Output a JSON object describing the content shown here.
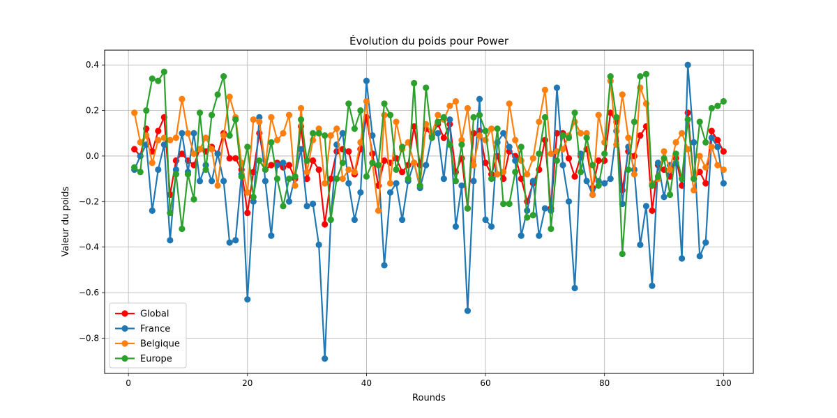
{
  "chart_data": {
    "type": "line",
    "title": "Évolution du poids pour Power",
    "xlabel": "Rounds",
    "ylabel": "Valeur du poids",
    "xlim": [
      -4,
      105
    ],
    "ylim": [
      -0.955,
      0.465
    ],
    "xticks": [
      0,
      20,
      40,
      60,
      80,
      100
    ],
    "xtick_labels": [
      "0",
      "20",
      "40",
      "60",
      "80",
      "100"
    ],
    "yticks": [
      -0.8,
      -0.6,
      -0.4,
      -0.2,
      0.0,
      0.2,
      0.4
    ],
    "ytick_labels": [
      "−0.8",
      "−0.6",
      "−0.4",
      "−0.2",
      "0.0",
      "0.2",
      "0.4"
    ],
    "grid": true,
    "legend_position": "lower-left",
    "x": [
      1,
      2,
      3,
      4,
      5,
      6,
      7,
      8,
      9,
      10,
      11,
      12,
      13,
      14,
      15,
      16,
      17,
      18,
      19,
      20,
      21,
      22,
      23,
      24,
      25,
      26,
      27,
      28,
      29,
      30,
      31,
      32,
      33,
      34,
      35,
      36,
      37,
      38,
      39,
      40,
      41,
      42,
      43,
      44,
      45,
      46,
      47,
      48,
      49,
      50,
      51,
      52,
      53,
      54,
      55,
      56,
      57,
      58,
      59,
      60,
      61,
      62,
      63,
      64,
      65,
      66,
      67,
      68,
      69,
      70,
      71,
      72,
      73,
      74,
      75,
      76,
      77,
      78,
      79,
      80,
      81,
      82,
      83,
      84,
      85,
      86,
      87,
      88,
      89,
      90,
      91,
      92,
      93,
      94,
      95,
      96,
      97,
      98,
      99,
      100
    ],
    "series": [
      {
        "name": "Global",
        "color": "#ff0000",
        "values": [
          0.03,
          0.0,
          0.12,
          0.02,
          0.11,
          0.17,
          -0.17,
          -0.02,
          0.01,
          -0.02,
          -0.04,
          0.03,
          0.02,
          0.04,
          0.01,
          0.1,
          -0.01,
          -0.01,
          -0.06,
          -0.25,
          -0.07,
          0.1,
          -0.06,
          -0.04,
          -0.03,
          -0.05,
          -0.04,
          -0.1,
          0.13,
          -0.1,
          -0.02,
          -0.06,
          -0.3,
          -0.1,
          0.02,
          0.03,
          0.02,
          -0.08,
          0.03,
          0.17,
          0.01,
          -0.13,
          -0.02,
          -0.03,
          -0.01,
          -0.07,
          -0.04,
          0.13,
          -0.04,
          0.12,
          0.09,
          0.14,
          0.08,
          0.14,
          -0.07,
          -0.01,
          -0.23,
          0.1,
          0.11,
          -0.03,
          -0.08,
          0.0,
          -0.1,
          0.02,
          0.0,
          -0.1,
          -0.2,
          -0.12,
          -0.06,
          0.07,
          -0.23,
          0.1,
          0.1,
          -0.01,
          -0.09,
          0.0,
          0.03,
          -0.14,
          -0.02,
          -0.02,
          0.19,
          0.15,
          -0.15,
          0.02,
          0.0,
          0.09,
          0.13,
          -0.24,
          -0.04,
          -0.06,
          -0.09,
          -0.01,
          -0.13,
          0.19,
          -0.1,
          -0.07,
          -0.12,
          0.11,
          0.07,
          0.02
        ]
      },
      {
        "name": "France",
        "color": "#1f77b4",
        "values": [
          -0.06,
          0.0,
          0.05,
          -0.24,
          -0.06,
          0.05,
          -0.37,
          -0.06,
          0.1,
          -0.07,
          0.1,
          -0.11,
          -0.04,
          -0.11,
          0.01,
          -0.11,
          -0.38,
          -0.37,
          -0.08,
          -0.63,
          -0.2,
          0.17,
          -0.11,
          -0.35,
          -0.04,
          -0.03,
          -0.2,
          -0.09,
          0.03,
          -0.22,
          -0.21,
          -0.39,
          -0.89,
          -0.28,
          0.05,
          0.1,
          -0.12,
          -0.28,
          -0.16,
          0.33,
          0.09,
          -0.04,
          -0.48,
          -0.16,
          -0.12,
          -0.28,
          -0.11,
          -0.03,
          -0.14,
          -0.04,
          0.09,
          0.1,
          -0.1,
          0.16,
          -0.31,
          -0.13,
          -0.68,
          -0.11,
          0.25,
          -0.28,
          -0.31,
          0.06,
          0.1,
          0.04,
          -0.02,
          -0.35,
          -0.24,
          -0.11,
          -0.35,
          -0.23,
          -0.24,
          0.3,
          -0.04,
          -0.2,
          -0.58,
          0.01,
          -0.11,
          -0.17,
          -0.11,
          -0.12,
          -0.1,
          0.11,
          -0.21,
          0.04,
          -0.06,
          -0.39,
          -0.22,
          -0.57,
          -0.03,
          -0.18,
          -0.04,
          -0.03,
          -0.45,
          0.4,
          0.06,
          -0.44,
          -0.38,
          0.08,
          0.04,
          -0.12
        ]
      },
      {
        "name": "Belgique",
        "color": "#ff7f0e",
        "values": [
          0.19,
          0.06,
          0.09,
          -0.03,
          0.07,
          0.08,
          0.07,
          0.08,
          0.25,
          0.1,
          0.01,
          0.03,
          0.08,
          0.03,
          -0.13,
          0.09,
          0.26,
          0.17,
          -0.03,
          -0.16,
          0.16,
          0.15,
          -0.04,
          0.17,
          0.07,
          0.1,
          0.18,
          -0.13,
          0.21,
          -0.07,
          0.07,
          0.12,
          -0.12,
          0.09,
          0.12,
          -0.1,
          -0.06,
          -0.07,
          0.06,
          0.24,
          -0.03,
          -0.24,
          0.18,
          -0.12,
          0.15,
          0.03,
          0.06,
          -0.03,
          -0.13,
          0.14,
          0.1,
          0.18,
          0.16,
          0.22,
          0.24,
          0.07,
          0.21,
          -0.04,
          0.09,
          0.07,
          0.12,
          -0.08,
          -0.07,
          0.23,
          0.07,
          -0.02,
          -0.08,
          -0.01,
          0.15,
          0.29,
          0.01,
          0.02,
          0.03,
          0.09,
          0.15,
          0.1,
          0.1,
          -0.17,
          0.18,
          0.06,
          0.33,
          0.05,
          0.27,
          0.08,
          -0.08,
          0.3,
          0.23,
          -0.12,
          -0.1,
          0.02,
          -0.06,
          0.06,
          0.1,
          0.03,
          -0.15,
          0.0,
          -0.05,
          0.04,
          -0.04,
          -0.06
        ]
      },
      {
        "name": "Europe",
        "color": "#2ca02c",
        "values": [
          -0.05,
          -0.07,
          0.2,
          0.34,
          0.33,
          0.37,
          -0.25,
          -0.08,
          -0.32,
          -0.08,
          -0.19,
          0.19,
          -0.06,
          0.18,
          0.27,
          0.35,
          0.09,
          0.16,
          -0.09,
          0.04,
          -0.18,
          -0.02,
          -0.06,
          0.06,
          -0.1,
          -0.22,
          -0.1,
          -0.09,
          0.16,
          -0.02,
          0.1,
          0.1,
          0.09,
          -0.28,
          -0.1,
          -0.03,
          0.23,
          0.12,
          0.2,
          -0.09,
          -0.03,
          -0.04,
          0.23,
          0.18,
          -0.06,
          0.04,
          -0.1,
          0.32,
          -0.13,
          0.3,
          0.08,
          0.15,
          0.17,
          0.05,
          -0.11,
          0.05,
          -0.23,
          0.17,
          0.18,
          0.11,
          -0.1,
          0.12,
          -0.21,
          -0.21,
          -0.07,
          0.04,
          -0.27,
          -0.26,
          0.01,
          0.17,
          -0.32,
          -0.02,
          0.09,
          0.08,
          0.19,
          -0.07,
          0.08,
          -0.04,
          -0.13,
          0.01,
          0.35,
          0.17,
          -0.43,
          -0.06,
          0.15,
          0.35,
          0.36,
          -0.13,
          -0.09,
          -0.01,
          -0.17,
          0.01,
          -0.1,
          0.16,
          -0.1,
          0.15,
          0.06,
          0.21,
          0.22,
          0.24
        ]
      }
    ]
  }
}
